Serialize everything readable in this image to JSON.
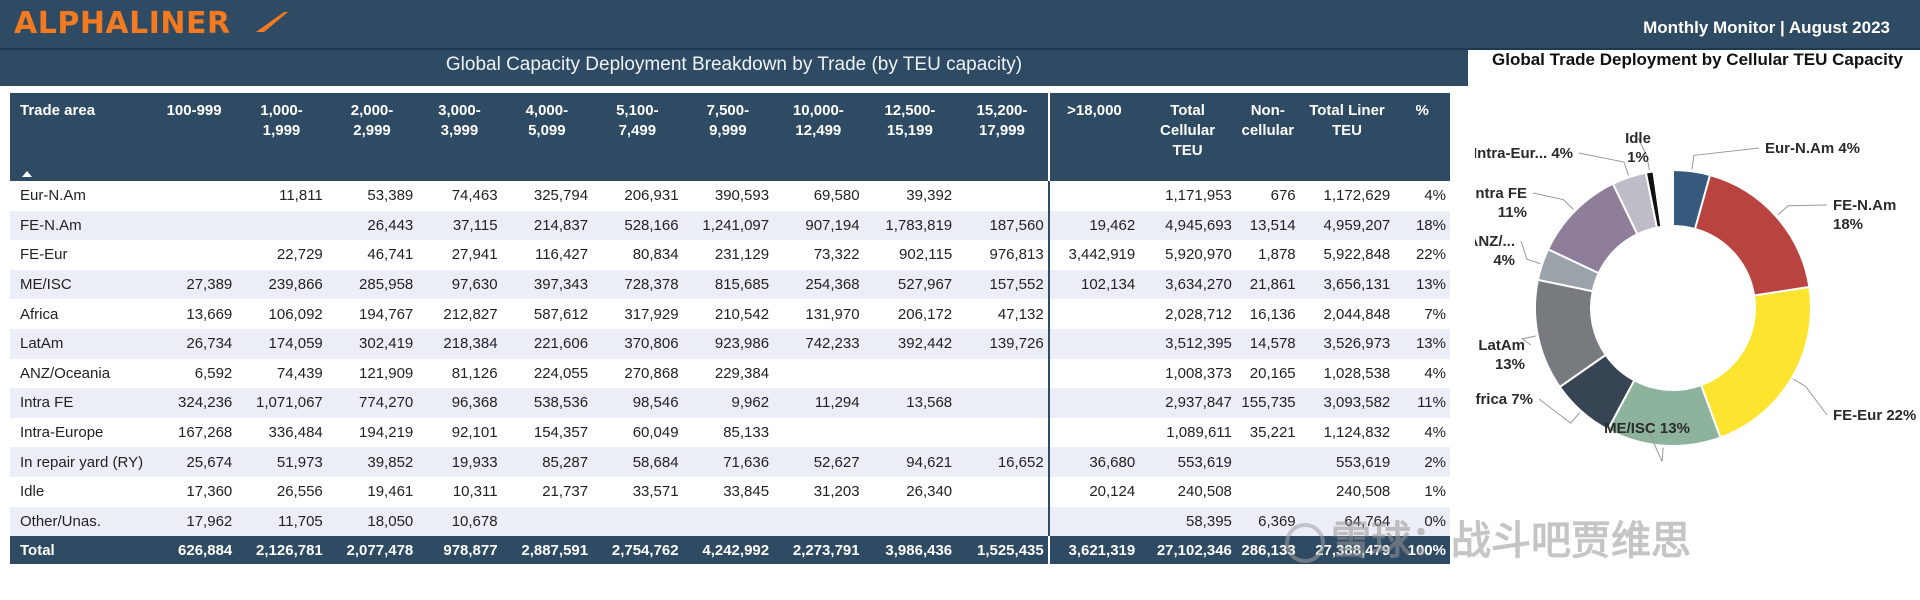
{
  "header": {
    "logo_text": "ALPHALINER",
    "monthly": "Monthly Monitor | August 2023",
    "table_title": "Global Capacity Deployment Breakdown by Trade (by TEU capacity)",
    "chart_title": "Global Trade Deployment by Cellular TEU Capacity"
  },
  "colors": {
    "bar": "#2f4a63",
    "logo": "#f47a1f",
    "stripe": "#eceef7"
  },
  "table": {
    "columns": [
      "Trade area",
      "100-999",
      "1,000-\n1,999",
      "2,000-\n2,999",
      "3,000-\n3,999",
      "4,000-\n5,099",
      "5,100-\n7,499",
      "7,500-\n9,999",
      "10,000-\n12,499",
      "12,500-\n15,199",
      "15,200-\n17,999",
      ">18,000",
      "Total\nCellular\nTEU",
      "Non-\ncellular",
      "Total Liner\nTEU",
      "%"
    ],
    "rows": [
      [
        "Eur-N.Am",
        "",
        "11,811",
        "53,389",
        "74,463",
        "325,794",
        "206,931",
        "390,593",
        "69,580",
        "39,392",
        "",
        "",
        "1,171,953",
        "676",
        "1,172,629",
        "4%"
      ],
      [
        "FE-N.Am",
        "",
        "",
        "26,443",
        "37,115",
        "214,837",
        "528,166",
        "1,241,097",
        "907,194",
        "1,783,819",
        "187,560",
        "19,462",
        "4,945,693",
        "13,514",
        "4,959,207",
        "18%"
      ],
      [
        "FE-Eur",
        "",
        "22,729",
        "46,741",
        "27,941",
        "116,427",
        "80,834",
        "231,129",
        "73,322",
        "902,115",
        "976,813",
        "3,442,919",
        "5,920,970",
        "1,878",
        "5,922,848",
        "22%"
      ],
      [
        "ME/ISC",
        "27,389",
        "239,866",
        "285,958",
        "97,630",
        "397,343",
        "728,378",
        "815,685",
        "254,368",
        "527,967",
        "157,552",
        "102,134",
        "3,634,270",
        "21,861",
        "3,656,131",
        "13%"
      ],
      [
        "Africa",
        "13,669",
        "106,092",
        "194,767",
        "212,827",
        "587,612",
        "317,929",
        "210,542",
        "131,970",
        "206,172",
        "47,132",
        "",
        "2,028,712",
        "16,136",
        "2,044,848",
        "7%"
      ],
      [
        "LatAm",
        "26,734",
        "174,059",
        "302,419",
        "218,384",
        "221,606",
        "370,806",
        "923,986",
        "742,233",
        "392,442",
        "139,726",
        "",
        "3,512,395",
        "14,578",
        "3,526,973",
        "13%"
      ],
      [
        "ANZ/Oceania",
        "6,592",
        "74,439",
        "121,909",
        "81,126",
        "224,055",
        "270,868",
        "229,384",
        "",
        "",
        "",
        "",
        "1,008,373",
        "20,165",
        "1,028,538",
        "4%"
      ],
      [
        "Intra FE",
        "324,236",
        "1,071,067",
        "774,270",
        "96,368",
        "538,536",
        "98,546",
        "9,962",
        "11,294",
        "13,568",
        "",
        "",
        "2,937,847",
        "155,735",
        "3,093,582",
        "11%"
      ],
      [
        "Intra-Europe",
        "167,268",
        "336,484",
        "194,219",
        "92,101",
        "154,357",
        "60,049",
        "85,133",
        "",
        "",
        "",
        "",
        "1,089,611",
        "35,221",
        "1,124,832",
        "4%"
      ],
      [
        "In repair yard (RY)",
        "25,674",
        "51,973",
        "39,852",
        "19,933",
        "85,287",
        "58,684",
        "71,636",
        "52,627",
        "94,621",
        "16,652",
        "36,680",
        "553,619",
        "",
        "553,619",
        "2%"
      ],
      [
        "Idle",
        "17,360",
        "26,556",
        "19,461",
        "10,311",
        "21,737",
        "33,571",
        "33,845",
        "31,203",
        "26,340",
        "",
        "20,124",
        "240,508",
        "",
        "240,508",
        "1%"
      ],
      [
        "Other/Unas.",
        "17,962",
        "11,705",
        "18,050",
        "10,678",
        "",
        "",
        "",
        "",
        "",
        "",
        "",
        "58,395",
        "6,369",
        "64,764",
        "0%"
      ]
    ],
    "total": [
      "Total",
      "626,884",
      "2,126,781",
      "2,077,478",
      "978,877",
      "2,887,591",
      "2,754,762",
      "4,242,992",
      "2,273,791",
      "3,986,436",
      "1,525,435",
      "3,621,319",
      "27,102,346",
      "286,133",
      "27,388,479",
      "100%"
    ]
  },
  "chart_data": {
    "type": "pie",
    "title": "Global Trade Deployment by Cellular TEU Capacity",
    "slices": [
      {
        "label": "Eur-N.Am",
        "pct_label": "4%",
        "value": 1171953,
        "color": "#355a7e"
      },
      {
        "label": "FE-N.Am",
        "pct_label": "18%",
        "value": 4945693,
        "color": "#b9433e"
      },
      {
        "label": "FE-Eur",
        "pct_label": "22%",
        "value": 5920970,
        "color": "#fde52f"
      },
      {
        "label": "ME/ISC",
        "pct_label": "13%",
        "value": 3634270,
        "color": "#8db39d"
      },
      {
        "label": "Africa",
        "pct_label": "7%",
        "value": 2028712,
        "color": "#374453"
      },
      {
        "label": "LatAm",
        "pct_label": "13%",
        "value": 3512395,
        "color": "#777a7e"
      },
      {
        "label": "ANZ/...",
        "pct_label": "4%",
        "value": 1008373,
        "color": "#9ba2aa"
      },
      {
        "label": "Intra FE",
        "pct_label": "11%",
        "value": 2937847,
        "color": "#8e7e9a"
      },
      {
        "label": "Intra-Eur...",
        "pct_label": "4%",
        "value": 1089611,
        "color": "#c0bcc7"
      },
      {
        "label": "Idle",
        "pct_label": "1%",
        "value": 240508,
        "color": "#111111"
      },
      {
        "label": "",
        "pct_label": "",
        "value": 553619,
        "color": "#ffffff"
      },
      {
        "label": "",
        "pct_label": "",
        "value": 58395,
        "color": "#e03b3b"
      }
    ]
  },
  "watermark": "雪球：战斗吧贾维思"
}
